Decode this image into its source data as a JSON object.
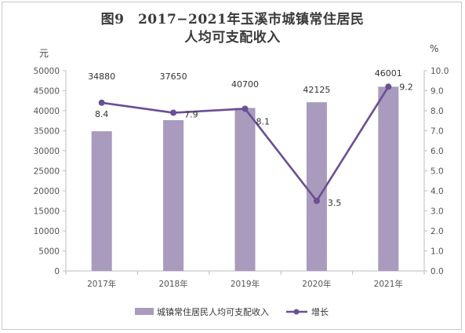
{
  "chart_data": {
    "type": "bar",
    "title_line1": "图9　2017−2021年玉溪市城镇常住居民",
    "title_line2": "人均可支配收入",
    "y_left_unit": "元",
    "y_right_unit": "%",
    "categories": [
      "2017年",
      "2018年",
      "2019年",
      "2020年",
      "2021年"
    ],
    "y_left_ticks": [
      "0",
      "5000",
      "10000",
      "15000",
      "20000",
      "25000",
      "30000",
      "35000",
      "40000",
      "45000",
      "50000"
    ],
    "y_right_ticks": [
      "0.0",
      "1.0",
      "2.0",
      "3.0",
      "4.0",
      "5.0",
      "6.0",
      "7.0",
      "8.0",
      "9.0",
      "10.0"
    ],
    "ylim_left": [
      0,
      50000
    ],
    "ylim_right": [
      0,
      10
    ],
    "grid": false,
    "legend_placement": "bottom",
    "series": [
      {
        "name": "城镇常住居民人均可支配收入",
        "type": "bar",
        "axis": "left",
        "color": "#a89bbd",
        "values": [
          34880,
          37650,
          40700,
          42125,
          46001
        ],
        "labels": [
          "34880",
          "37650",
          "40700",
          "42125",
          "46001"
        ]
      },
      {
        "name": "增长",
        "type": "line",
        "axis": "right",
        "color": "#6a4f94",
        "values": [
          8.4,
          7.9,
          8.1,
          3.5,
          9.2
        ],
        "labels": [
          "8.4",
          "7.9",
          "8.1",
          "3.5",
          "9.2"
        ]
      }
    ]
  }
}
